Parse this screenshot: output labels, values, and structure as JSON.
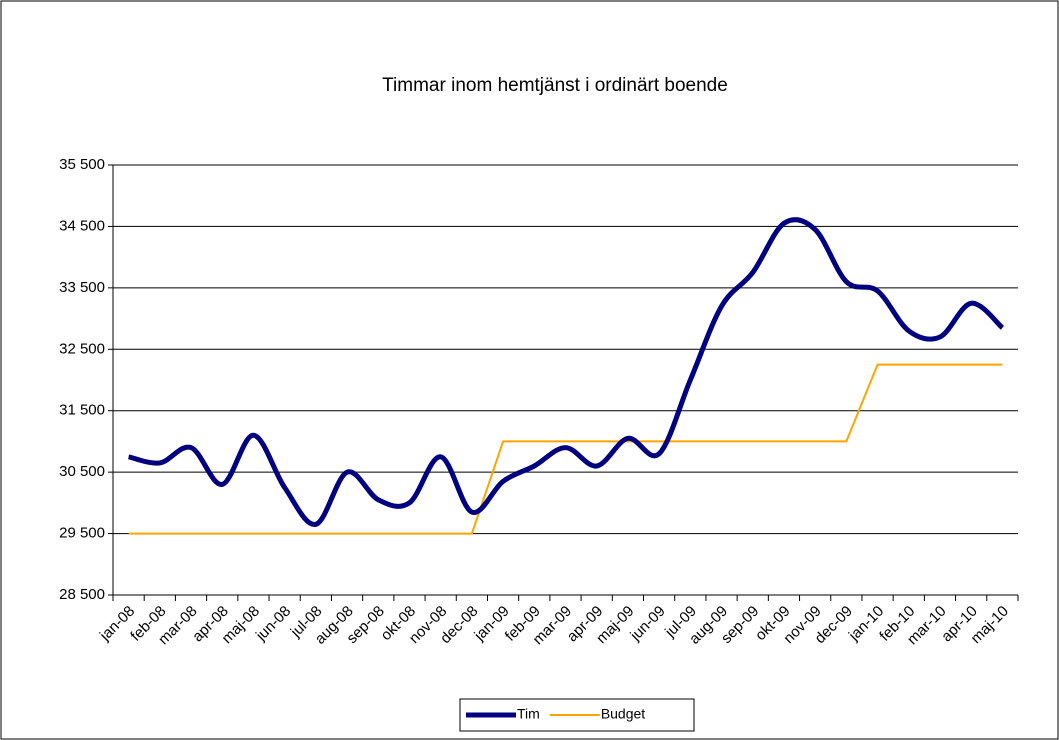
{
  "chart_data": {
    "type": "line",
    "title": "Timmar inom hemtjänst i ordinärt boende",
    "categories": [
      "jan-08",
      "feb-08",
      "mar-08",
      "apr-08",
      "maj-08",
      "jun-08",
      "jul-08",
      "aug-08",
      "sep-08",
      "okt-08",
      "nov-08",
      "dec-08",
      "jan-09",
      "feb-09",
      "mar-09",
      "apr-09",
      "maj-09",
      "jun-09",
      "jul-09",
      "aug-09",
      "sep-09",
      "okt-09",
      "nov-09",
      "dec-09",
      "jan-10",
      "feb-10",
      "mar-10",
      "apr-10",
      "maj-10"
    ],
    "series": [
      {
        "name": "Tim",
        "color": "#000080",
        "values": [
          30750,
          30650,
          30900,
          30300,
          31100,
          30250,
          29650,
          30500,
          30050,
          30000,
          30750,
          29850,
          30350,
          30600,
          30900,
          30600,
          31050,
          30800,
          32000,
          33200,
          33750,
          34550,
          34450,
          33600,
          33450,
          32800,
          32700,
          33250,
          32850
        ]
      },
      {
        "name": "Budget",
        "color": "#ffa500",
        "values": [
          29500,
          29500,
          29500,
          29500,
          29500,
          29500,
          29500,
          29500,
          29500,
          29500,
          29500,
          29500,
          31000,
          31000,
          31000,
          31000,
          31000,
          31000,
          31000,
          31000,
          31000,
          31000,
          31000,
          31000,
          32250,
          32250,
          32250,
          32250,
          32250
        ]
      }
    ],
    "ylim": [
      28500,
      35500
    ],
    "yticks": [
      {
        "value": 28500,
        "label": "28 500"
      },
      {
        "value": 29500,
        "label": "29 500"
      },
      {
        "value": 30500,
        "label": "30 500"
      },
      {
        "value": 31500,
        "label": "31 500"
      },
      {
        "value": 32500,
        "label": "32 500"
      },
      {
        "value": 33500,
        "label": "33 500"
      },
      {
        "value": 34500,
        "label": "34 500"
      },
      {
        "value": 35500,
        "label": "35 500"
      }
    ],
    "grid": true,
    "legend": "bottom"
  }
}
